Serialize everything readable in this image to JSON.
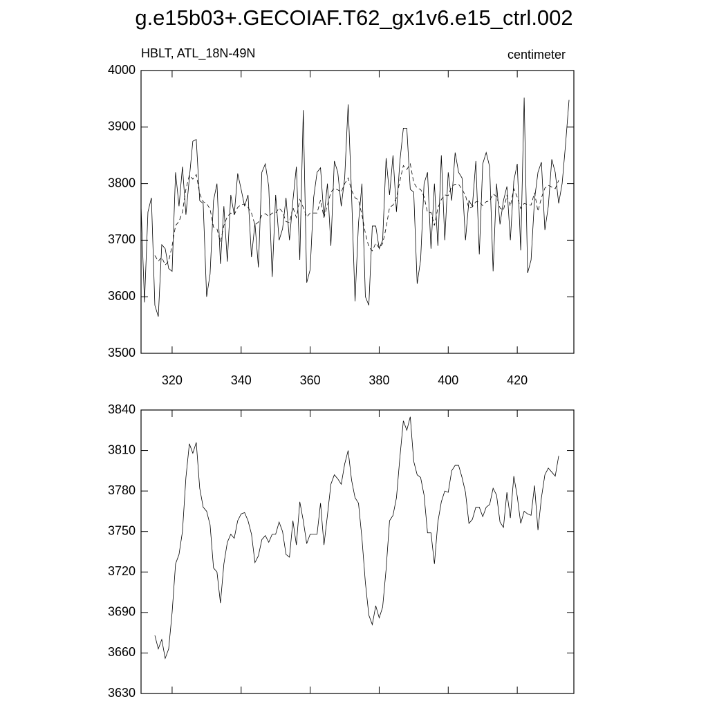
{
  "title": "g.e15b03+.GECOIAF.T62_gx1v6.e15_ctrl.002",
  "chart_data": [
    {
      "type": "line",
      "left_string": "HBLT, ATL_18N-49N",
      "right_string": "centimeter",
      "x": [
        311,
        312,
        313,
        314,
        315,
        316,
        317,
        318,
        319,
        320,
        321,
        322,
        323,
        324,
        325,
        326,
        327,
        328,
        329,
        330,
        331,
        332,
        333,
        334,
        335,
        336,
        337,
        338,
        339,
        340,
        341,
        342,
        343,
        344,
        345,
        346,
        347,
        348,
        349,
        350,
        351,
        352,
        353,
        354,
        355,
        356,
        357,
        358,
        359,
        360,
        361,
        362,
        363,
        364,
        365,
        366,
        367,
        368,
        369,
        370,
        371,
        372,
        373,
        374,
        375,
        376,
        377,
        378,
        379,
        380,
        381,
        382,
        383,
        384,
        385,
        386,
        387,
        388,
        389,
        390,
        391,
        392,
        393,
        394,
        395,
        396,
        397,
        398,
        399,
        400,
        401,
        402,
        403,
        404,
        405,
        406,
        407,
        408,
        409,
        410,
        411,
        412,
        413,
        414,
        415,
        416,
        417,
        418,
        419,
        420,
        421,
        422,
        423,
        424,
        425,
        426,
        427,
        428,
        429,
        430,
        431,
        432,
        433,
        434,
        435
      ],
      "series": [
        {
          "color": "#000000",
          "line_style": "solid",
          "values": [
            3760,
            3590,
            3750,
            3775,
            3585,
            3565,
            3692,
            3685,
            3650,
            3645,
            3820,
            3760,
            3830,
            3745,
            3810,
            3875,
            3878,
            3770,
            3765,
            3600,
            3640,
            3770,
            3800,
            3658,
            3760,
            3662,
            3780,
            3745,
            3818,
            3790,
            3760,
            3780,
            3670,
            3730,
            3652,
            3820,
            3835,
            3795,
            3635,
            3780,
            3700,
            3720,
            3775,
            3700,
            3770,
            3830,
            3665,
            3930,
            3625,
            3648,
            3775,
            3820,
            3828,
            3740,
            3800,
            3690,
            3840,
            3820,
            3760,
            3810,
            3940,
            3780,
            3592,
            3730,
            3800,
            3600,
            3585,
            3725,
            3725,
            3685,
            3700,
            3845,
            3780,
            3850,
            3750,
            3840,
            3898,
            3898,
            3790,
            3785,
            3623,
            3665,
            3800,
            3820,
            3685,
            3800,
            3690,
            3850,
            3700,
            3820,
            3770,
            3855,
            3820,
            3810,
            3700,
            3770,
            3760,
            3840,
            3675,
            3835,
            3855,
            3830,
            3645,
            3800,
            3728,
            3770,
            3795,
            3700,
            3805,
            3835,
            3682,
            3952,
            3642,
            3665,
            3772,
            3820,
            3838,
            3718,
            3760,
            3843,
            3820,
            3765,
            3800,
            3870,
            3948
          ]
        },
        {
          "color": "#000000",
          "line_style": "dashed",
          "values": [
            null,
            null,
            null,
            null,
            3673,
            3663,
            3670,
            3656,
            3663,
            3690,
            3726,
            3733,
            3750,
            3790,
            3815,
            3808,
            3816,
            3782,
            3768,
            3765,
            3755,
            3723,
            3720,
            3697,
            3726,
            3742,
            3748,
            3745,
            3758,
            3763,
            3764,
            3758,
            3748,
            3727,
            3732,
            3744,
            3747,
            3742,
            3748,
            3748,
            3757,
            3750,
            3733,
            3731,
            3758,
            3740,
            3772,
            3758,
            3741,
            3748,
            3748,
            3748,
            3771,
            3740,
            3762,
            3785,
            3792,
            3789,
            3785,
            3800,
            3810,
            3788,
            3775,
            3771,
            3745,
            3712,
            3688,
            3681,
            3695,
            3686,
            3694,
            3722,
            3758,
            3762,
            3775,
            3805,
            3832,
            3825,
            3835,
            3802,
            3792,
            3790,
            3777,
            3749,
            3749,
            3726,
            3757,
            3772,
            3780,
            3779,
            3795,
            3799,
            3799,
            3790,
            3779,
            3756,
            3759,
            3768,
            3768,
            3761,
            3768,
            3770,
            3782,
            3777,
            3757,
            3753,
            3779,
            3760,
            3791,
            3776,
            3756,
            3765,
            3763,
            3762,
            3784,
            3751,
            3775,
            3792,
            3797,
            3794,
            3791,
            3806,
            null,
            null,
            null
          ]
        }
      ],
      "xlim": [
        311,
        436.4
      ],
      "xticks": [
        320,
        340,
        360,
        380,
        400,
        420
      ],
      "ylim": [
        3500,
        4000
      ],
      "yticks": [
        3500,
        3600,
        3700,
        3800,
        3900,
        4000
      ]
    },
    {
      "type": "line",
      "x": [
        315,
        316,
        317,
        318,
        319,
        320,
        321,
        322,
        323,
        324,
        325,
        326,
        327,
        328,
        329,
        330,
        331,
        332,
        333,
        334,
        335,
        336,
        337,
        338,
        339,
        340,
        341,
        342,
        343,
        344,
        345,
        346,
        347,
        348,
        349,
        350,
        351,
        352,
        353,
        354,
        355,
        356,
        357,
        358,
        359,
        360,
        361,
        362,
        363,
        364,
        365,
        366,
        367,
        368,
        369,
        370,
        371,
        372,
        373,
        374,
        375,
        376,
        377,
        378,
        379,
        380,
        381,
        382,
        383,
        384,
        385,
        386,
        387,
        388,
        389,
        390,
        391,
        392,
        393,
        394,
        395,
        396,
        397,
        398,
        399,
        400,
        401,
        402,
        403,
        404,
        405,
        406,
        407,
        408,
        409,
        410,
        411,
        412,
        413,
        414,
        415,
        416,
        417,
        418,
        419,
        420,
        421,
        422,
        423,
        424,
        425,
        426,
        427,
        428,
        429,
        430,
        431,
        432
      ],
      "series": [
        {
          "color": "#000000",
          "line_style": "solid",
          "values": [
            3673,
            3663,
            3670,
            3656,
            3663,
            3690,
            3726,
            3733,
            3750,
            3790,
            3815,
            3808,
            3816,
            3782,
            3768,
            3765,
            3755,
            3723,
            3720,
            3697,
            3726,
            3742,
            3748,
            3745,
            3758,
            3763,
            3764,
            3758,
            3748,
            3727,
            3732,
            3744,
            3747,
            3742,
            3748,
            3748,
            3757,
            3750,
            3733,
            3731,
            3758,
            3740,
            3772,
            3758,
            3741,
            3748,
            3748,
            3748,
            3771,
            3740,
            3762,
            3785,
            3792,
            3789,
            3785,
            3800,
            3810,
            3788,
            3775,
            3771,
            3745,
            3712,
            3688,
            3681,
            3695,
            3686,
            3694,
            3722,
            3758,
            3762,
            3775,
            3805,
            3832,
            3825,
            3835,
            3802,
            3792,
            3790,
            3777,
            3749,
            3749,
            3726,
            3757,
            3772,
            3780,
            3779,
            3795,
            3799,
            3799,
            3790,
            3779,
            3756,
            3759,
            3768,
            3768,
            3761,
            3768,
            3770,
            3782,
            3777,
            3757,
            3753,
            3779,
            3760,
            3791,
            3776,
            3756,
            3765,
            3763,
            3762,
            3784,
            3751,
            3775,
            3792,
            3797,
            3794,
            3791,
            3806
          ]
        }
      ],
      "xlim": [
        311,
        436.4
      ],
      "xticks": [
        320,
        340,
        360,
        380,
        400,
        420
      ],
      "ylim": [
        3630,
        3840
      ],
      "yticks": [
        3630,
        3660,
        3690,
        3720,
        3750,
        3780,
        3810,
        3840
      ]
    }
  ]
}
